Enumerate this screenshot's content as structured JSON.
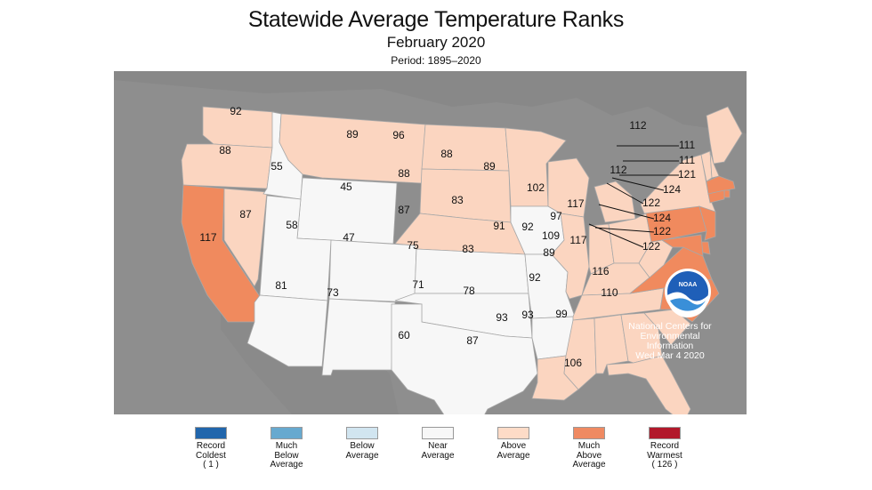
{
  "title": "Statewide Average Temperature Ranks",
  "subtitle": "February 2020",
  "period": "Period: 1895–2020",
  "colors": {
    "background_land": "#8c8c8c",
    "near_average": "#f7f7f7",
    "above_average": "#fbd5c0",
    "much_above_average": "#f08a5e",
    "border": "#a8a8a8"
  },
  "logo": {
    "name": "noaa-logo-icon",
    "text": "NOAA"
  },
  "credit": {
    "line1": "National Centers for",
    "line2": "Environmental",
    "line3": "Information",
    "line4": "Wed Mar  4 2020"
  },
  "states": [
    {
      "id": "WA",
      "rank": "92",
      "category": "above_average"
    },
    {
      "id": "OR",
      "rank": "88",
      "category": "above_average"
    },
    {
      "id": "CA",
      "rank": "117",
      "category": "much_above_average"
    },
    {
      "id": "NV",
      "rank": "87",
      "category": "above_average"
    },
    {
      "id": "ID",
      "rank": "55",
      "category": "near_average"
    },
    {
      "id": "MT",
      "rank": "89",
      "category": "above_average"
    },
    {
      "id": "WY",
      "rank": "45",
      "category": "near_average"
    },
    {
      "id": "UT",
      "rank": "58",
      "category": "near_average"
    },
    {
      "id": "AZ",
      "rank": "81",
      "category": "near_average"
    },
    {
      "id": "CO",
      "rank": "47",
      "category": "near_average"
    },
    {
      "id": "NM",
      "rank": "73",
      "category": "near_average"
    },
    {
      "id": "ND",
      "rank": "96",
      "category": "above_average"
    },
    {
      "id": "SD",
      "rank": "88",
      "category": "above_average"
    },
    {
      "id": "NE",
      "rank": "87",
      "category": "above_average"
    },
    {
      "id": "KS",
      "rank": "75",
      "category": "near_average"
    },
    {
      "id": "OK",
      "rank": "71",
      "category": "near_average"
    },
    {
      "id": "TX",
      "rank": "60",
      "category": "near_average"
    },
    {
      "id": "MN",
      "rank": "88",
      "category": "above_average"
    },
    {
      "id": "IA",
      "rank": "83",
      "category": "near_average"
    },
    {
      "id": "MO",
      "rank": "83",
      "category": "near_average"
    },
    {
      "id": "AR",
      "rank": "78",
      "category": "near_average"
    },
    {
      "id": "LA",
      "rank": "87",
      "category": "above_average"
    },
    {
      "id": "WI",
      "rank": "89",
      "category": "above_average"
    },
    {
      "id": "IL",
      "rank": "91",
      "category": "above_average"
    },
    {
      "id": "MI",
      "rank": "102",
      "category": "above_average"
    },
    {
      "id": "IN",
      "rank": "92",
      "category": "above_average"
    },
    {
      "id": "OH",
      "rank": "97",
      "category": "above_average"
    },
    {
      "id": "KY",
      "rank": "89",
      "category": "above_average"
    },
    {
      "id": "TN",
      "rank": "92",
      "category": "above_average"
    },
    {
      "id": "MS",
      "rank": "93",
      "category": "above_average"
    },
    {
      "id": "AL",
      "rank": "93",
      "category": "above_average"
    },
    {
      "id": "GA",
      "rank": "99",
      "category": "above_average"
    },
    {
      "id": "FL",
      "rank": "106",
      "category": "above_average"
    },
    {
      "id": "SC",
      "rank": "110",
      "category": "above_average"
    },
    {
      "id": "NC",
      "rank": "116",
      "category": "much_above_average"
    },
    {
      "id": "VA",
      "rank": "117",
      "category": "much_above_average"
    },
    {
      "id": "WV",
      "rank": "109",
      "category": "above_average"
    },
    {
      "id": "PA",
      "rank": "117",
      "category": "much_above_average"
    },
    {
      "id": "NY",
      "rank": "112",
      "category": "above_average"
    },
    {
      "id": "ME",
      "rank": "112",
      "category": "above_average"
    },
    {
      "id": "VT",
      "rank": "111",
      "category": "above_average"
    },
    {
      "id": "NH",
      "rank": "111",
      "category": "above_average"
    },
    {
      "id": "MA",
      "rank": "121",
      "category": "much_above_average"
    },
    {
      "id": "RI",
      "rank": "124",
      "category": "much_above_average"
    },
    {
      "id": "CT",
      "rank": "122",
      "category": "much_above_average"
    },
    {
      "id": "NJ",
      "rank": "124",
      "category": "much_above_average"
    },
    {
      "id": "DE",
      "rank": "122",
      "category": "much_above_average"
    },
    {
      "id": "MD",
      "rank": "122",
      "category": "much_above_average"
    }
  ],
  "legend": [
    {
      "label": "Record\nColdest\n( 1 )",
      "color": "#2166ac"
    },
    {
      "label": "Much\nBelow\nAverage",
      "color": "#67a9cf"
    },
    {
      "label": "Below\nAverage",
      "color": "#d1e5f0"
    },
    {
      "label": "Near\nAverage",
      "color": "#f7f7f7"
    },
    {
      "label": "Above\nAverage",
      "color": "#fddbc7"
    },
    {
      "label": "Much\nAbove\nAverage",
      "color": "#ef8a62"
    },
    {
      "label": "Record\nWarmest\n( 126 )",
      "color": "#b2182b"
    }
  ]
}
